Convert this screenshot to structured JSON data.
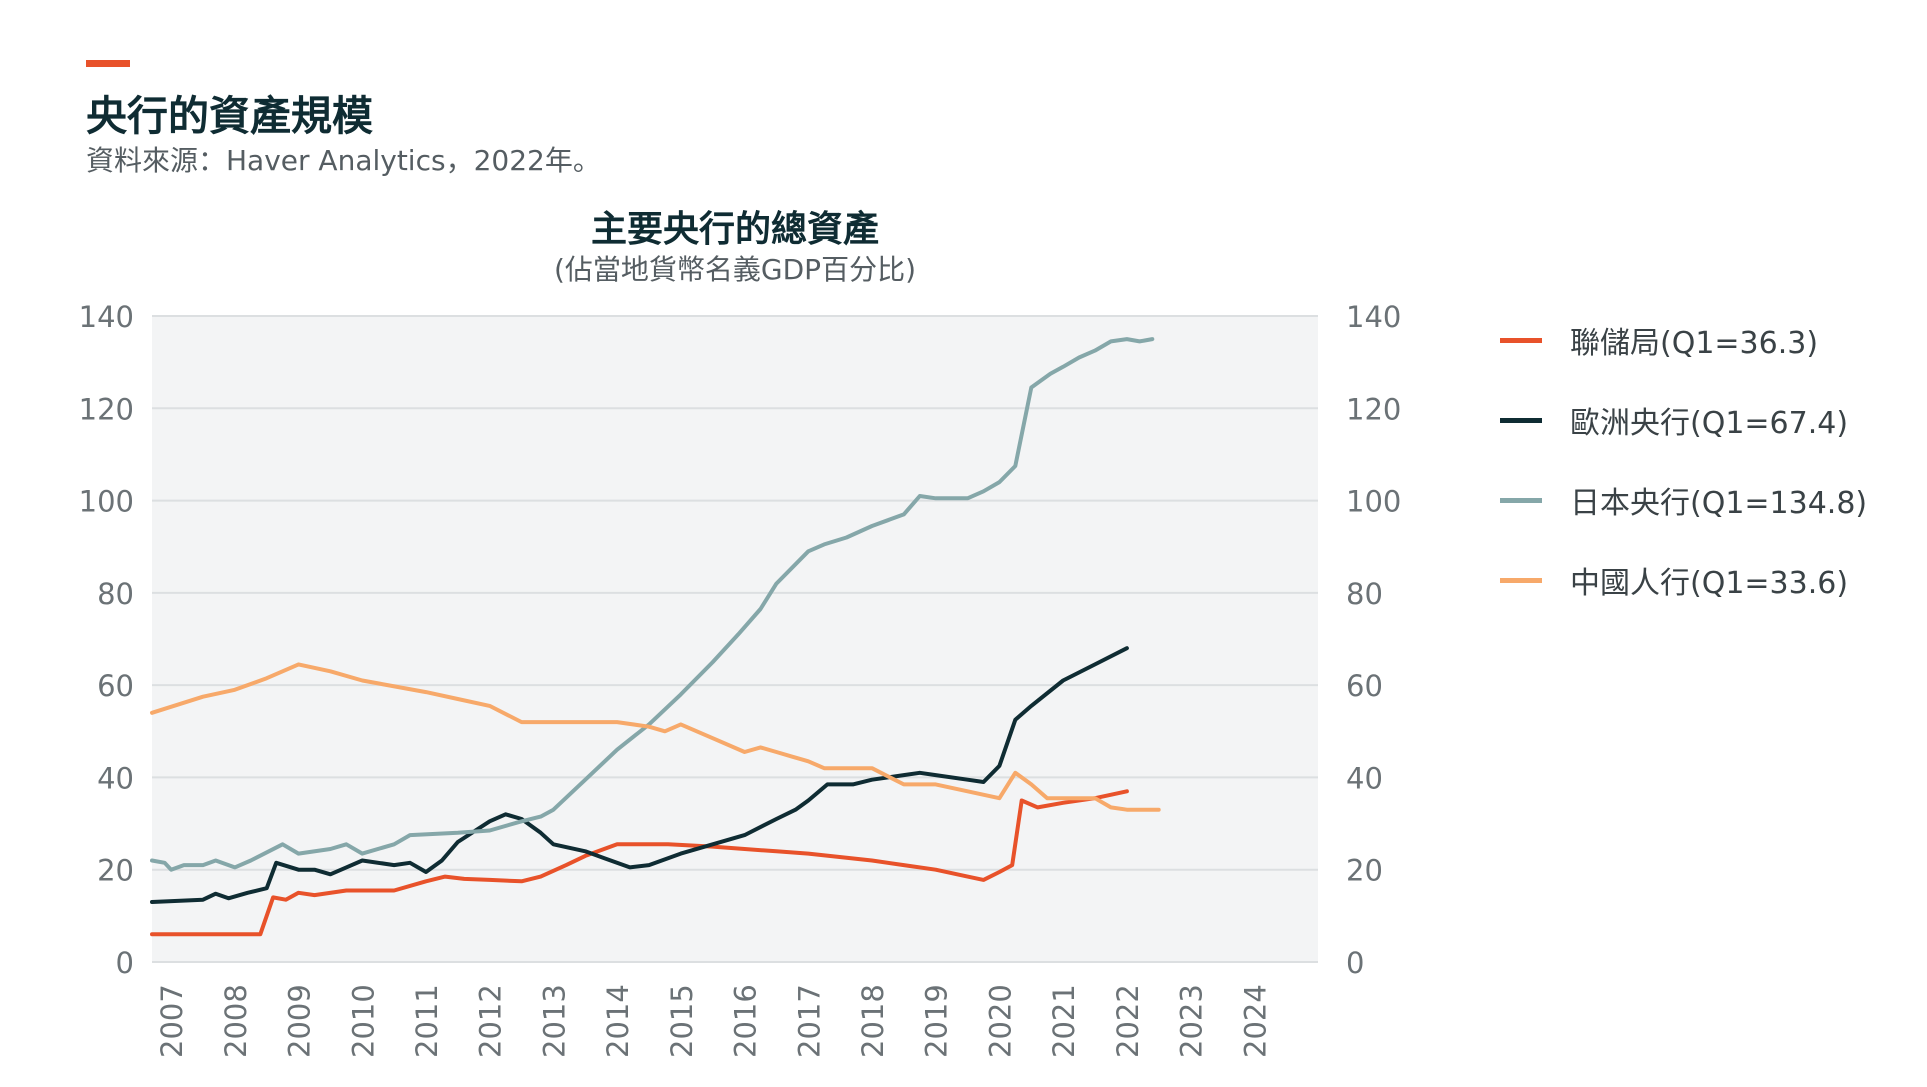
{
  "header": {
    "title": "央行的資產規模",
    "source": "資料來源：Haver Analytics，2022年。"
  },
  "colors": {
    "accent": "#e8522a",
    "plot_background": "#f3f4f5",
    "grid": "#dcdfe1"
  },
  "chart_data": {
    "type": "line",
    "title": "主要央行的總資產",
    "subtitle": "(佔當地貨幣名義GDP百分比)",
    "xlabel": "",
    "ylabel": "",
    "xlim": [
      2006.7,
      2025
    ],
    "ylim": [
      0,
      140
    ],
    "yticks": [
      0,
      20,
      40,
      60,
      80,
      100,
      120,
      140
    ],
    "xticks": [
      "2007",
      "2008",
      "2009",
      "2010",
      "2011",
      "2012",
      "2013",
      "2014",
      "2015",
      "2016",
      "2017",
      "2018",
      "2019",
      "2020",
      "2021",
      "2022",
      "2023",
      "2024"
    ],
    "grid": true,
    "legend_position": "right",
    "series": [
      {
        "name": "聯儲局(Q1=36.3)",
        "color": "#e8522a",
        "points": [
          [
            2006.7,
            6
          ],
          [
            2008.4,
            6
          ],
          [
            2008.6,
            14
          ],
          [
            2008.8,
            13.5
          ],
          [
            2009.0,
            15
          ],
          [
            2009.25,
            14.5
          ],
          [
            2009.75,
            15.5
          ],
          [
            2010.5,
            15.5
          ],
          [
            2011.0,
            17.5
          ],
          [
            2011.3,
            18.5
          ],
          [
            2011.6,
            18
          ],
          [
            2012.0,
            17.8
          ],
          [
            2012.5,
            17.5
          ],
          [
            2012.8,
            18.5
          ],
          [
            2013.2,
            21
          ],
          [
            2013.5,
            23
          ],
          [
            2014.0,
            25.5
          ],
          [
            2014.8,
            25.5
          ],
          [
            2015.5,
            25
          ],
          [
            2016.0,
            24.5
          ],
          [
            2016.5,
            24
          ],
          [
            2017.0,
            23.5
          ],
          [
            2018.0,
            22
          ],
          [
            2018.5,
            21
          ],
          [
            2019.0,
            20
          ],
          [
            2019.5,
            18.5
          ],
          [
            2019.75,
            17.8
          ],
          [
            2020.0,
            19.5
          ],
          [
            2020.2,
            21
          ],
          [
            2020.35,
            35
          ],
          [
            2020.6,
            33.5
          ],
          [
            2021.0,
            34.5
          ],
          [
            2021.5,
            35.5
          ],
          [
            2022.0,
            37
          ]
        ]
      },
      {
        "name": "歐洲央行(Q1=67.4)",
        "color": "#0f2c33",
        "points": [
          [
            2006.7,
            13
          ],
          [
            2007.5,
            13.5
          ],
          [
            2007.7,
            14.8
          ],
          [
            2007.9,
            13.8
          ],
          [
            2008.2,
            15
          ],
          [
            2008.5,
            16
          ],
          [
            2008.65,
            21.5
          ],
          [
            2009.0,
            20
          ],
          [
            2009.25,
            20
          ],
          [
            2009.5,
            19
          ],
          [
            2009.75,
            20.5
          ],
          [
            2010.0,
            22
          ],
          [
            2010.5,
            21
          ],
          [
            2010.75,
            21.5
          ],
          [
            2011.0,
            19.5
          ],
          [
            2011.25,
            22
          ],
          [
            2011.5,
            26
          ],
          [
            2012.0,
            30.5
          ],
          [
            2012.25,
            32
          ],
          [
            2012.5,
            31
          ],
          [
            2012.8,
            28
          ],
          [
            2013.0,
            25.5
          ],
          [
            2013.5,
            24
          ],
          [
            2013.8,
            22.5
          ],
          [
            2014.2,
            20.5
          ],
          [
            2014.5,
            21
          ],
          [
            2015.0,
            23.5
          ],
          [
            2015.5,
            25.5
          ],
          [
            2016.0,
            27.5
          ],
          [
            2016.5,
            31
          ],
          [
            2016.8,
            33
          ],
          [
            2017.0,
            35
          ],
          [
            2017.3,
            38.5
          ],
          [
            2017.7,
            38.5
          ],
          [
            2018.0,
            39.5
          ],
          [
            2018.5,
            40.5
          ],
          [
            2018.75,
            41
          ],
          [
            2019.0,
            40.5
          ],
          [
            2019.5,
            39.5
          ],
          [
            2019.75,
            39
          ],
          [
            2020.0,
            42.5
          ],
          [
            2020.25,
            52.5
          ],
          [
            2020.5,
            55.5
          ],
          [
            2021.0,
            61
          ],
          [
            2021.5,
            64.5
          ],
          [
            2022.0,
            68
          ]
        ]
      },
      {
        "name": "日本央行(Q1=134.8)",
        "color": "#85a7a9",
        "points": [
          [
            2006.7,
            22
          ],
          [
            2006.9,
            21.5
          ],
          [
            2007.0,
            20
          ],
          [
            2007.2,
            21
          ],
          [
            2007.5,
            21
          ],
          [
            2007.7,
            22
          ],
          [
            2008.0,
            20.5
          ],
          [
            2008.25,
            22
          ],
          [
            2008.75,
            25.5
          ],
          [
            2009.0,
            23.5
          ],
          [
            2009.5,
            24.5
          ],
          [
            2009.75,
            25.5
          ],
          [
            2010.0,
            23.5
          ],
          [
            2010.5,
            25.5
          ],
          [
            2010.75,
            27.5
          ],
          [
            2011.5,
            28
          ],
          [
            2012.0,
            28.5
          ],
          [
            2012.5,
            30.5
          ],
          [
            2012.8,
            31.5
          ],
          [
            2013.0,
            33
          ],
          [
            2013.5,
            39.5
          ],
          [
            2014.0,
            46
          ],
          [
            2014.5,
            51.5
          ],
          [
            2015.0,
            58
          ],
          [
            2015.5,
            65
          ],
          [
            2015.9,
            71
          ],
          [
            2016.25,
            76.5
          ],
          [
            2016.5,
            82
          ],
          [
            2017.0,
            89
          ],
          [
            2017.25,
            90.5
          ],
          [
            2017.6,
            92
          ],
          [
            2018.0,
            94.5
          ],
          [
            2018.5,
            97
          ],
          [
            2018.75,
            101
          ],
          [
            2019.0,
            100.5
          ],
          [
            2019.5,
            100.5
          ],
          [
            2019.75,
            102
          ],
          [
            2020.0,
            104
          ],
          [
            2020.25,
            107.5
          ],
          [
            2020.5,
            124.5
          ],
          [
            2020.8,
            127.5
          ],
          [
            2021.0,
            129
          ],
          [
            2021.25,
            131
          ],
          [
            2021.5,
            132.5
          ],
          [
            2021.75,
            134.5
          ],
          [
            2022.0,
            135
          ],
          [
            2022.2,
            134.5
          ],
          [
            2022.4,
            135
          ]
        ]
      },
      {
        "name": "中國人行(Q1=33.6)",
        "color": "#f7a96a",
        "points": [
          [
            2006.7,
            54
          ],
          [
            2007.5,
            57.5
          ],
          [
            2008.0,
            59
          ],
          [
            2008.5,
            61.5
          ],
          [
            2009.0,
            64.5
          ],
          [
            2009.5,
            63
          ],
          [
            2010.0,
            61
          ],
          [
            2011.0,
            58.5
          ],
          [
            2011.5,
            57
          ],
          [
            2012.0,
            55.5
          ],
          [
            2012.5,
            52
          ],
          [
            2013.0,
            52
          ],
          [
            2014.0,
            52
          ],
          [
            2014.5,
            51
          ],
          [
            2014.75,
            50
          ],
          [
            2015.0,
            51.5
          ],
          [
            2015.5,
            48.5
          ],
          [
            2016.0,
            45.5
          ],
          [
            2016.25,
            46.5
          ],
          [
            2016.5,
            45.5
          ],
          [
            2016.75,
            44.5
          ],
          [
            2017.0,
            43.5
          ],
          [
            2017.25,
            42
          ],
          [
            2018.0,
            42
          ],
          [
            2018.5,
            38.5
          ],
          [
            2019.0,
            38.5
          ],
          [
            2019.5,
            37
          ],
          [
            2020.0,
            35.5
          ],
          [
            2020.25,
            41
          ],
          [
            2020.5,
            38.5
          ],
          [
            2020.75,
            35.5
          ],
          [
            2021.0,
            35.5
          ],
          [
            2021.5,
            35.5
          ],
          [
            2021.75,
            33.5
          ],
          [
            2022.0,
            33
          ],
          [
            2022.5,
            33
          ]
        ]
      }
    ]
  }
}
